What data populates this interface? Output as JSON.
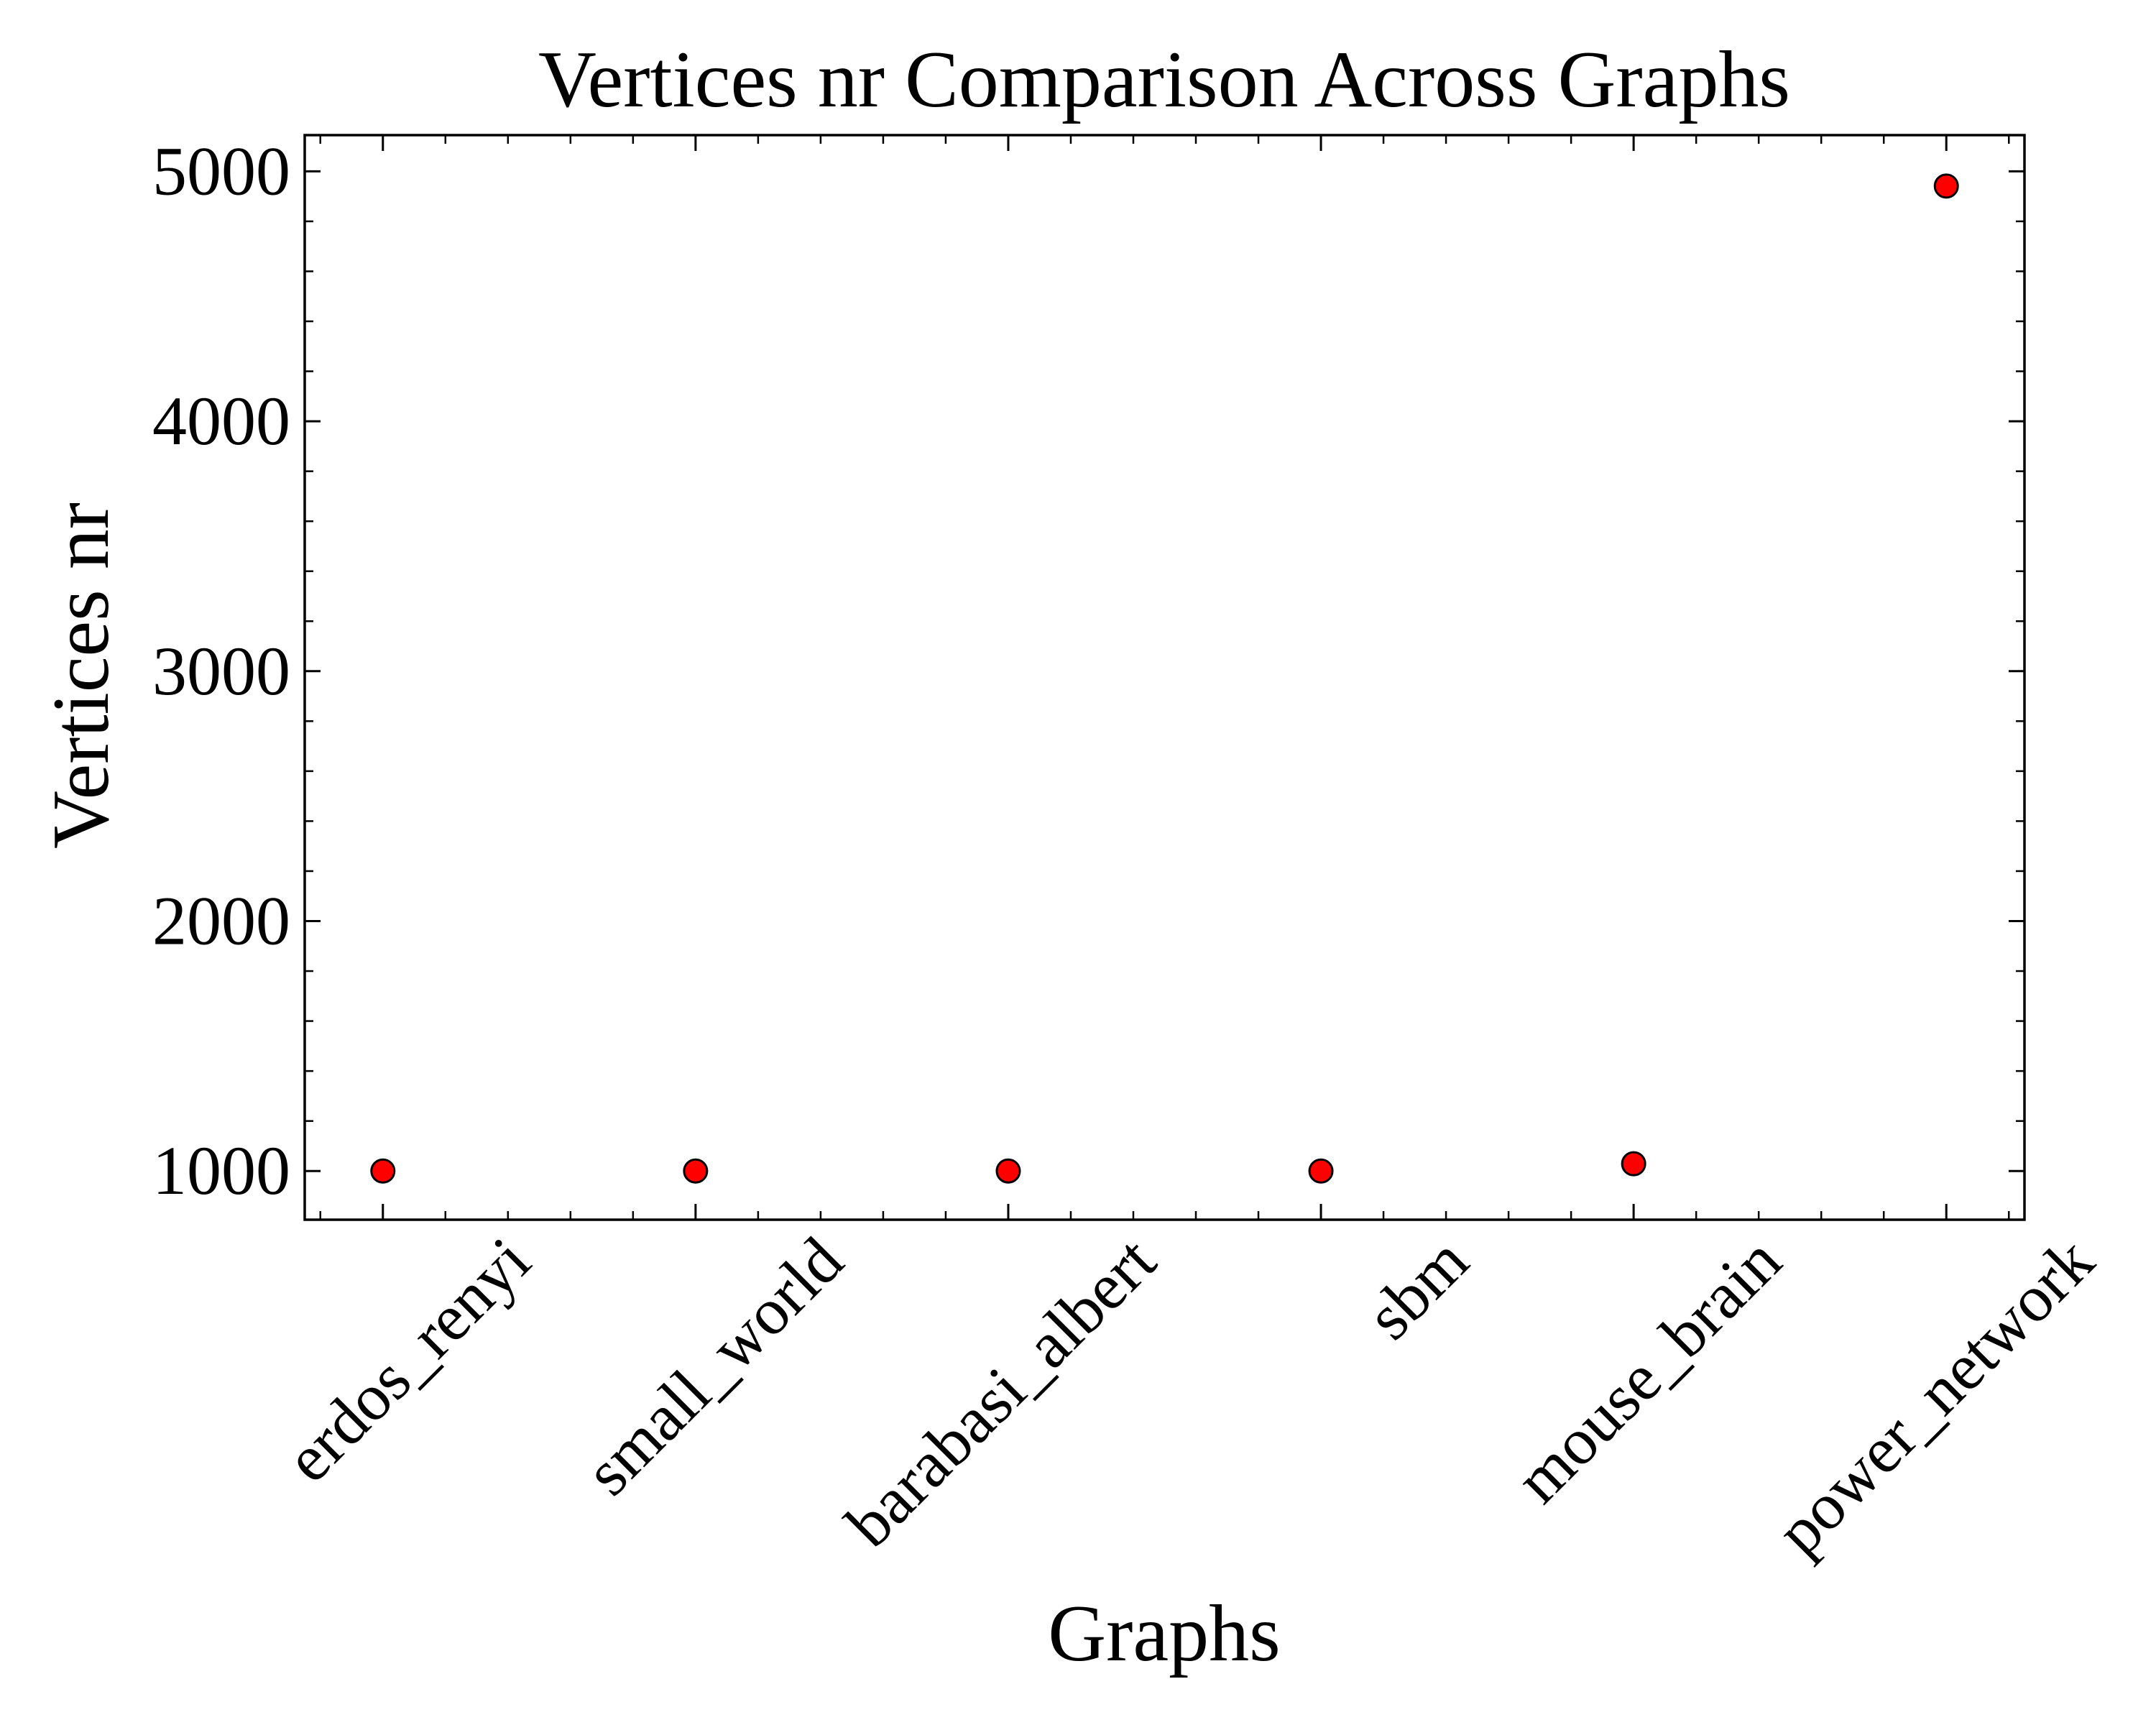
{
  "chart_data": {
    "type": "scatter",
    "title": "Vertices nr Comparison Across Graphs",
    "xlabel": "Graphs",
    "ylabel": "Vertices nr",
    "categories": [
      "erdos_renyi",
      "small_world",
      "barabasi_albert",
      "sbm",
      "mouse_brain",
      "power_network"
    ],
    "values": [
      1000,
      1000,
      1000,
      1000,
      1029,
      4941
    ],
    "ylim": [
      805,
      5145
    ],
    "yticks": [
      1000,
      2000,
      3000,
      4000,
      5000
    ],
    "yticks_labels": [
      "1000",
      "2000",
      "3000",
      "4000",
      "5000"
    ],
    "grid": false,
    "legend": "none",
    "marker_color": "#ff0000",
    "marker_edge_color": "#000000"
  }
}
